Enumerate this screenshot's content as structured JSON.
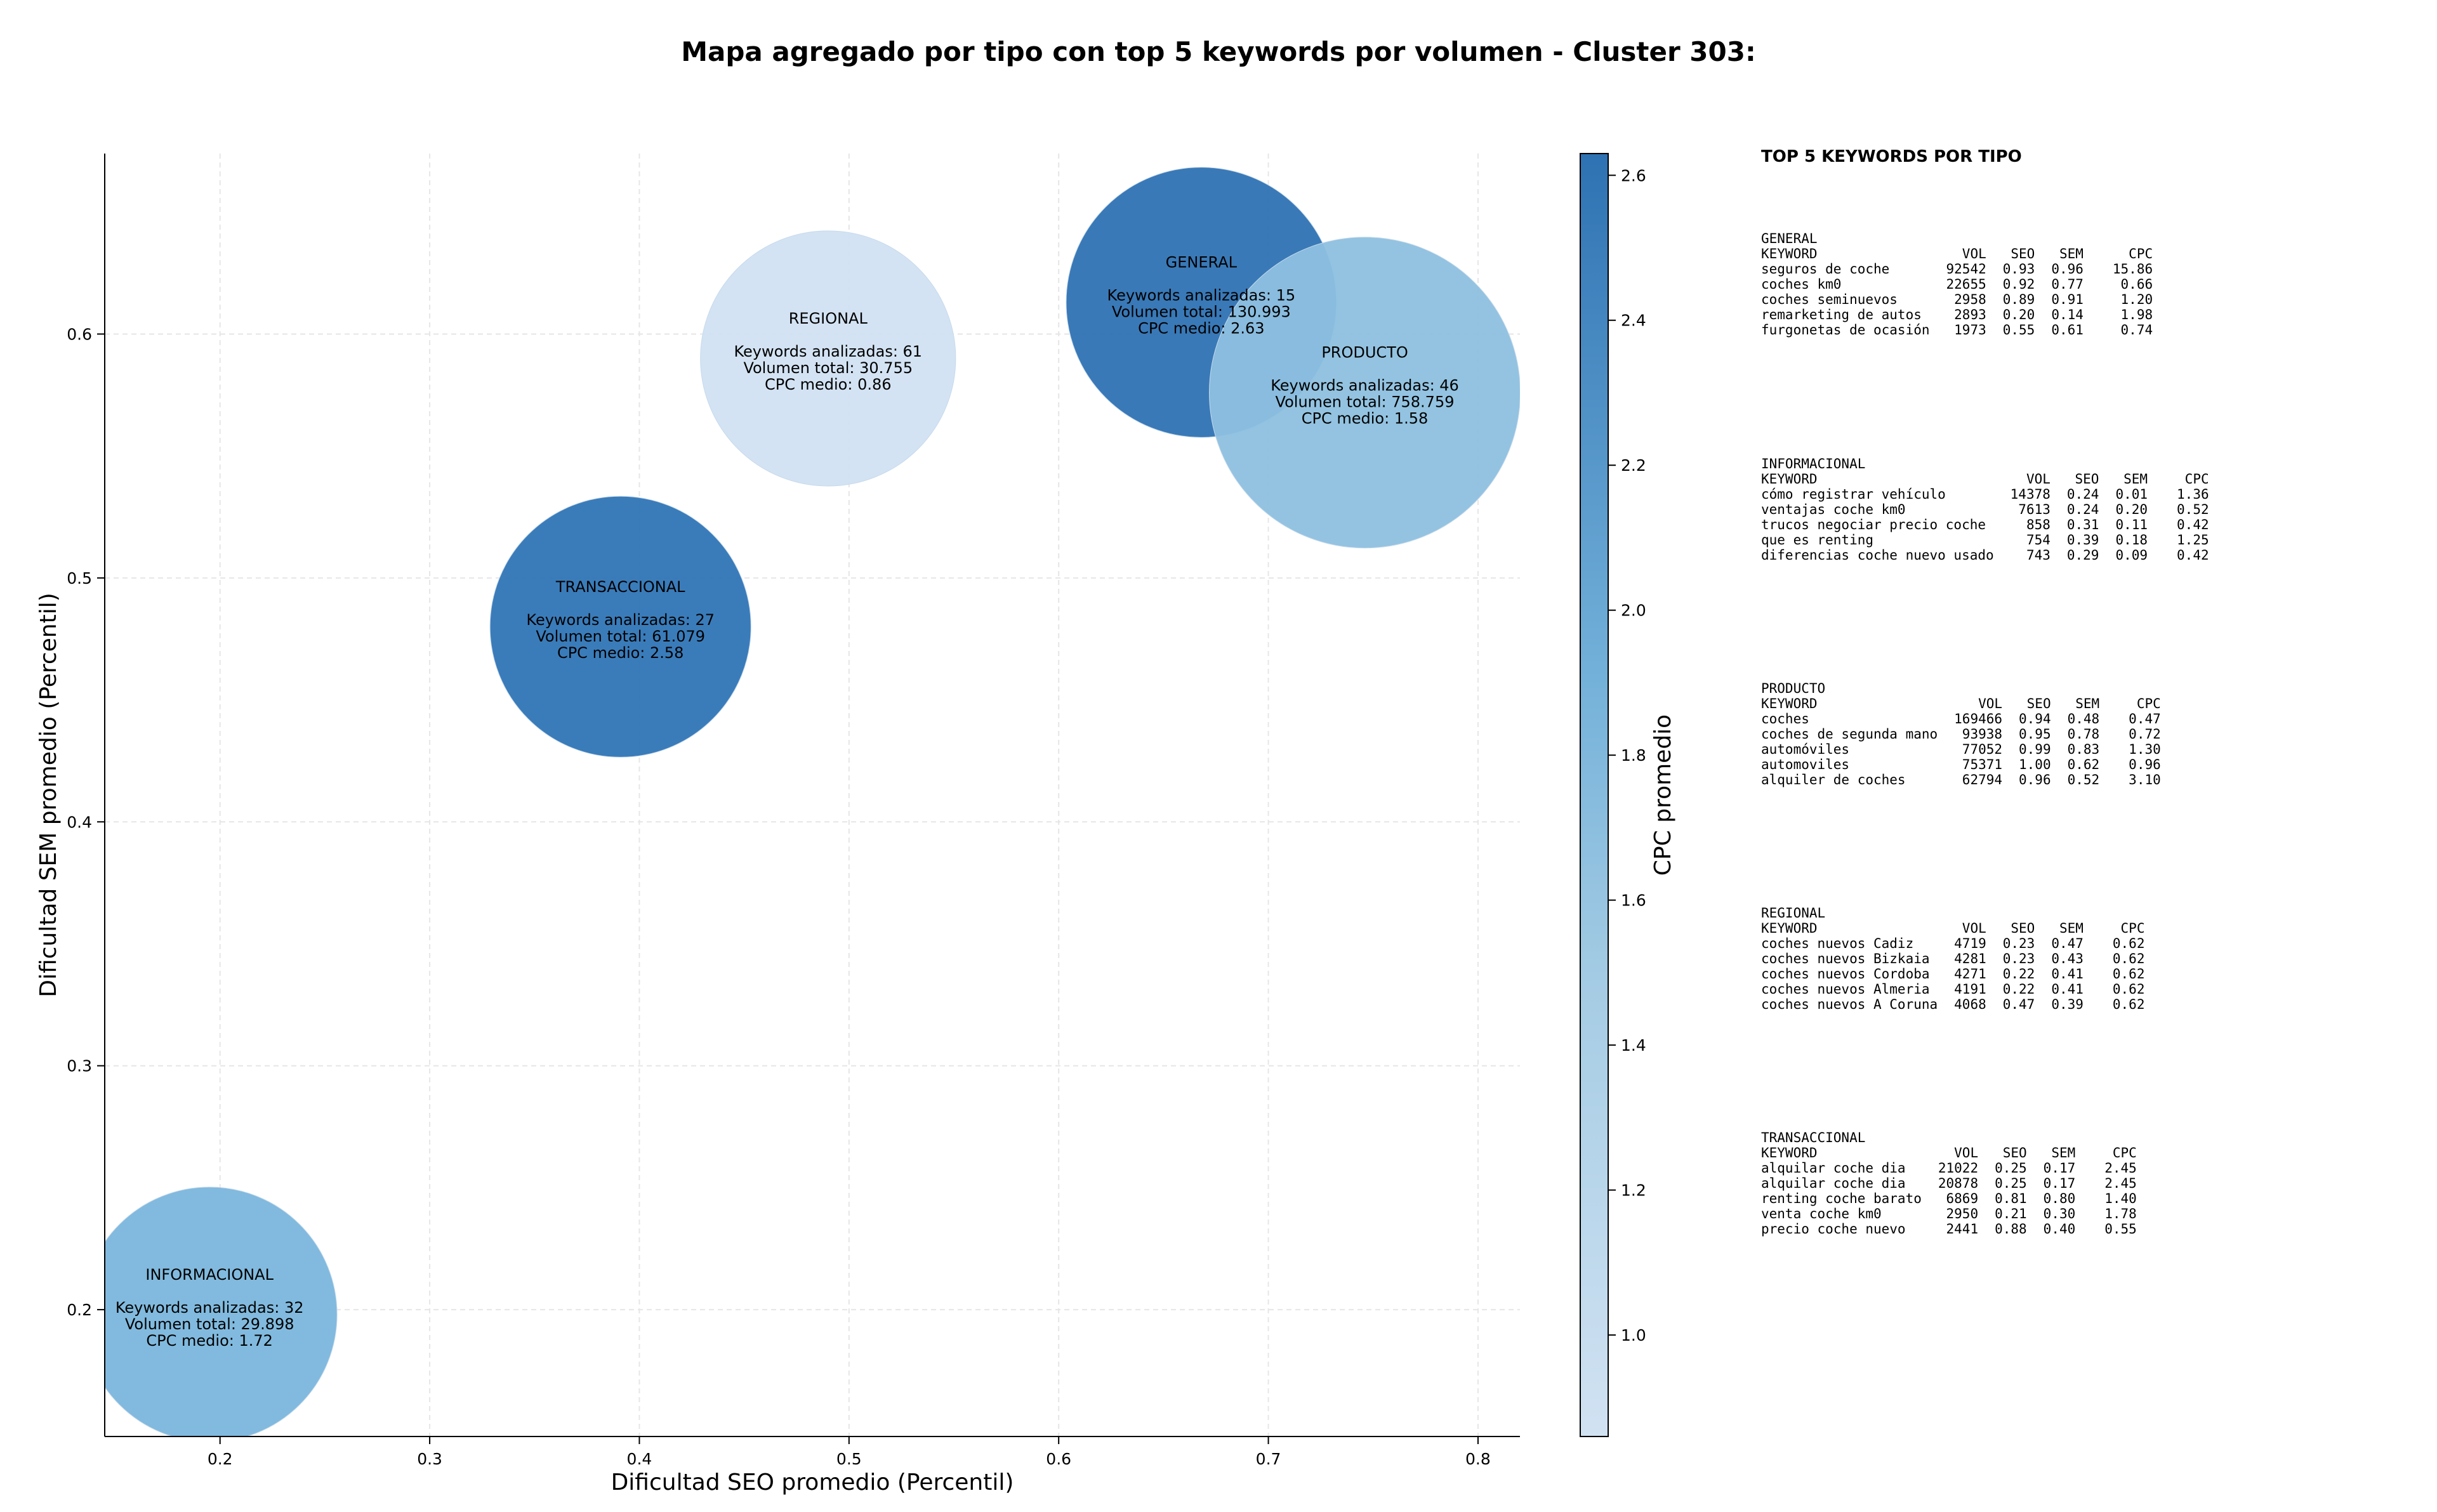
{
  "chart_data": {
    "type": "scatter",
    "title": "Mapa agregado por tipo con top 5 keywords por volumen - Cluster 303:",
    "xlabel": "Dificultad SEO promedio (Percentil)",
    "ylabel": "Dificultad SEM promedio (Percentil)",
    "colorbar_label": "CPC promedio",
    "xlim": [
      0.145,
      0.82
    ],
    "ylim": [
      0.148,
      0.674
    ],
    "xticks": [
      "0.2",
      "0.3",
      "0.4",
      "0.5",
      "0.6",
      "0.7",
      "0.8"
    ],
    "xtick_values": [
      0.2,
      0.3,
      0.4,
      0.5,
      0.6,
      0.7,
      0.8
    ],
    "yticks": [
      "0.2",
      "0.3",
      "0.4",
      "0.5",
      "0.6"
    ],
    "ytick_values": [
      0.2,
      0.3,
      0.4,
      0.5,
      0.6
    ],
    "colorbar_range": [
      0.86,
      2.63
    ],
    "colorbar_ticks": [
      "1.0",
      "1.2",
      "1.4",
      "1.6",
      "1.8",
      "2.0",
      "2.2",
      "2.4",
      "2.6"
    ],
    "colorbar_tick_values": [
      1.0,
      1.2,
      1.4,
      1.6,
      1.8,
      2.0,
      2.2,
      2.4,
      2.6
    ],
    "grid": true,
    "colormap": "Blues",
    "points": [
      {
        "name": "INFORMACIONAL",
        "x": 0.195,
        "y": 0.198,
        "keywords": "Keywords analizadas: 32",
        "volume": "Volumen total: 29.898",
        "cpc_text": "CPC medio: 1.72",
        "cpc": 1.72,
        "volume_value": 29898,
        "color": "#7ab6dc"
      },
      {
        "name": "TRANSACCIONAL",
        "x": 0.391,
        "y": 0.48,
        "keywords": "Keywords analizadas: 27",
        "volume": "Volumen total: 61.079",
        "cpc_text": "CPC medio: 2.58",
        "cpc": 2.58,
        "volume_value": 61079,
        "color": "#2f75b6"
      },
      {
        "name": "REGIONAL",
        "x": 0.49,
        "y": 0.59,
        "keywords": "Keywords analizadas: 61",
        "volume": "Volumen total: 30.755",
        "cpc_text": "CPC medio: 0.86",
        "cpc": 0.86,
        "volume_value": 30755,
        "color": "#d1e2f2"
      },
      {
        "name": "GENERAL",
        "x": 0.668,
        "y": 0.613,
        "keywords": "Keywords analizadas: 15",
        "volume": "Volumen total: 130.993",
        "cpc_text": "CPC medio: 2.63",
        "cpc": 2.63,
        "volume_value": 130993,
        "color": "#2e72b3"
      },
      {
        "name": "PRODUCTO",
        "x": 0.746,
        "y": 0.576,
        "keywords": "Keywords analizadas: 46",
        "volume": "Volumen total: 758.759",
        "cpc_text": "CPC medio: 1.58",
        "cpc": 1.58,
        "volume_value": 758759,
        "color": "#8dc0df"
      }
    ]
  },
  "panel": {
    "title": "TOP 5 KEYWORDS POR TIPO",
    "groups": [
      {
        "name": "GENERAL",
        "headers": [
          "KEYWORD",
          "VOL",
          "SEO",
          "SEM",
          "CPC"
        ],
        "rows": [
          [
            "seguros de coche",
            "92542",
            "0.93",
            "0.96",
            "15.86"
          ],
          [
            "coches km0",
            "22655",
            "0.92",
            "0.77",
            "0.66"
          ],
          [
            "coches seminuevos",
            "2958",
            "0.89",
            "0.91",
            "1.20"
          ],
          [
            "remarketing de autos",
            "2893",
            "0.20",
            "0.14",
            "1.98"
          ],
          [
            "furgonetas de ocasión",
            "1973",
            "0.55",
            "0.61",
            "0.74"
          ]
        ]
      },
      {
        "name": "INFORMACIONAL",
        "headers": [
          "KEYWORD",
          "VOL",
          "SEO",
          "SEM",
          "CPC"
        ],
        "rows": [
          [
            "cómo registrar vehículo",
            "14378",
            "0.24",
            "0.01",
            "1.36"
          ],
          [
            "ventajas coche km0",
            "7613",
            "0.24",
            "0.20",
            "0.52"
          ],
          [
            "trucos negociar precio coche",
            "858",
            "0.31",
            "0.11",
            "0.42"
          ],
          [
            "que es renting",
            "754",
            "0.39",
            "0.18",
            "1.25"
          ],
          [
            "diferencias coche nuevo usado",
            "743",
            "0.29",
            "0.09",
            "0.42"
          ]
        ]
      },
      {
        "name": "PRODUCTO",
        "headers": [
          "KEYWORD",
          "VOL",
          "SEO",
          "SEM",
          "CPC"
        ],
        "rows": [
          [
            "coches",
            "169466",
            "0.94",
            "0.48",
            "0.47"
          ],
          [
            "coches de segunda mano",
            "93938",
            "0.95",
            "0.78",
            "0.72"
          ],
          [
            "automóviles",
            "77052",
            "0.99",
            "0.83",
            "1.30"
          ],
          [
            "automoviles",
            "75371",
            "1.00",
            "0.62",
            "0.96"
          ],
          [
            "alquiler de coches",
            "62794",
            "0.96",
            "0.52",
            "3.10"
          ]
        ]
      },
      {
        "name": "REGIONAL",
        "headers": [
          "KEYWORD",
          "VOL",
          "SEO",
          "SEM",
          "CPC"
        ],
        "rows": [
          [
            "coches nuevos Cadiz",
            "4719",
            "0.23",
            "0.47",
            "0.62"
          ],
          [
            "coches nuevos Bizkaia",
            "4281",
            "0.23",
            "0.43",
            "0.62"
          ],
          [
            "coches nuevos Cordoba",
            "4271",
            "0.22",
            "0.41",
            "0.62"
          ],
          [
            "coches nuevos Almeria",
            "4191",
            "0.22",
            "0.41",
            "0.62"
          ],
          [
            "coches nuevos A Coruna",
            "4068",
            "0.47",
            "0.39",
            "0.62"
          ]
        ]
      },
      {
        "name": "TRANSACCIONAL",
        "headers": [
          "KEYWORD",
          "VOL",
          "SEO",
          "SEM",
          "CPC"
        ],
        "rows": [
          [
            "alquilar coche dia",
            "21022",
            "0.25",
            "0.17",
            "2.45"
          ],
          [
            "alquilar coche dia",
            "20878",
            "0.25",
            "0.17",
            "2.45"
          ],
          [
            "renting coche barato",
            "6869",
            "0.81",
            "0.80",
            "1.40"
          ],
          [
            "venta coche km0",
            "2950",
            "0.21",
            "0.30",
            "1.78"
          ],
          [
            "precio coche nuevo",
            "2441",
            "0.88",
            "0.40",
            "0.55"
          ]
        ]
      }
    ]
  }
}
